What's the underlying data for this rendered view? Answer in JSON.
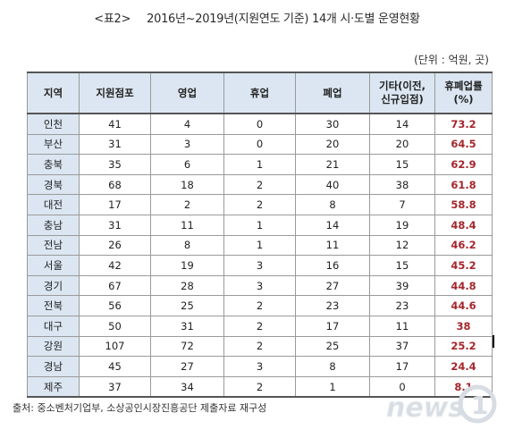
{
  "title": {
    "tag": "<표2>",
    "text": "2016년~2019년(지원연도 기준) 14개 시·도별 운영현황"
  },
  "unit": "(단위 : 억원, 곳)",
  "table": {
    "headers": [
      "지역",
      "지원점포",
      "영업",
      "휴업",
      "폐업",
      "기타(이전,\n신규입점)",
      "휴폐업률\n(%)"
    ],
    "rows": [
      [
        "인천",
        "41",
        "4",
        "0",
        "30",
        "14",
        "73.2"
      ],
      [
        "부산",
        "31",
        "3",
        "0",
        "20",
        "20",
        "64.5"
      ],
      [
        "충북",
        "35",
        "6",
        "1",
        "21",
        "15",
        "62.9"
      ],
      [
        "경북",
        "68",
        "18",
        "2",
        "40",
        "38",
        "61.8"
      ],
      [
        "대전",
        "17",
        "2",
        "2",
        "8",
        "7",
        "58.8"
      ],
      [
        "충남",
        "31",
        "11",
        "1",
        "14",
        "19",
        "48.4"
      ],
      [
        "전남",
        "26",
        "8",
        "1",
        "11",
        "12",
        "46.2"
      ],
      [
        "서울",
        "42",
        "19",
        "3",
        "16",
        "15",
        "45.2"
      ],
      [
        "경기",
        "67",
        "28",
        "3",
        "27",
        "39",
        "44.8"
      ],
      [
        "전북",
        "56",
        "25",
        "2",
        "23",
        "23",
        "44.6"
      ],
      [
        "대구",
        "50",
        "31",
        "2",
        "17",
        "11",
        "38"
      ],
      [
        "강원",
        "107",
        "72",
        "2",
        "25",
        "37",
        "25.2"
      ],
      [
        "경남",
        "45",
        "27",
        "3",
        "8",
        "17",
        "24.4"
      ],
      [
        "제주",
        "37",
        "34",
        "2",
        "1",
        "0",
        "8.1"
      ]
    ]
  },
  "source": "출처: 중소벤처기업부, 소상공인시장진흥공단 제출자료 재구성",
  "watermark": "news1",
  "colors": {
    "header_bg": "#dbe6f2",
    "rate_text": "#a4262c"
  }
}
